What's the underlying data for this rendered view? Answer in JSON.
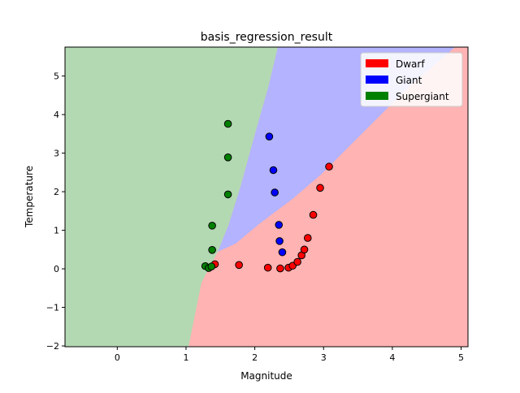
{
  "chart_data": {
    "type": "scatter",
    "title": "basis_regression_result",
    "xlabel": "Magnitude",
    "ylabel": "Temperature",
    "xlim": [
      -0.76,
      5.1
    ],
    "ylim": [
      -2.02,
      5.75
    ],
    "xticks": [
      "0",
      "1",
      "2",
      "3",
      "4",
      "5"
    ],
    "yticks": [
      "−2",
      "−1",
      "0",
      "1",
      "2",
      "3",
      "4",
      "5"
    ],
    "grid": false,
    "legend_position": "top-right",
    "background_regions": [
      {
        "class": "Supergiant",
        "color": "#b3d9b3"
      },
      {
        "class": "Giant",
        "color": "#b3b3ff"
      },
      {
        "class": "Dwarf",
        "color": "#ffb3b3"
      }
    ],
    "legend": [
      {
        "label": "Dwarf",
        "color": "#ff0000"
      },
      {
        "label": "Giant",
        "color": "#0000ff"
      },
      {
        "label": "Supergiant",
        "color": "#008000"
      }
    ],
    "series": [
      {
        "name": "Dwarf",
        "color": "#ff0000",
        "points": [
          [
            1.42,
            0.12
          ],
          [
            1.77,
            0.1
          ],
          [
            2.19,
            0.03
          ],
          [
            2.37,
            0.01
          ],
          [
            2.49,
            0.03
          ],
          [
            2.55,
            0.08
          ],
          [
            2.62,
            0.18
          ],
          [
            2.68,
            0.35
          ],
          [
            2.72,
            0.5
          ],
          [
            2.77,
            0.8
          ],
          [
            2.85,
            1.4
          ],
          [
            2.95,
            2.1
          ],
          [
            3.08,
            2.65
          ]
        ]
      },
      {
        "name": "Giant",
        "color": "#0000ff",
        "points": [
          [
            2.21,
            3.43
          ],
          [
            2.27,
            2.56
          ],
          [
            2.29,
            1.98
          ],
          [
            2.35,
            1.14
          ],
          [
            2.36,
            0.72
          ],
          [
            2.4,
            0.43
          ]
        ]
      },
      {
        "name": "Supergiant",
        "color": "#008000",
        "points": [
          [
            1.61,
            3.76
          ],
          [
            1.61,
            2.89
          ],
          [
            1.61,
            1.93
          ],
          [
            1.38,
            1.12
          ],
          [
            1.38,
            0.49
          ],
          [
            1.28,
            0.07
          ],
          [
            1.33,
            0.02
          ],
          [
            1.37,
            0.06
          ]
        ]
      }
    ]
  }
}
